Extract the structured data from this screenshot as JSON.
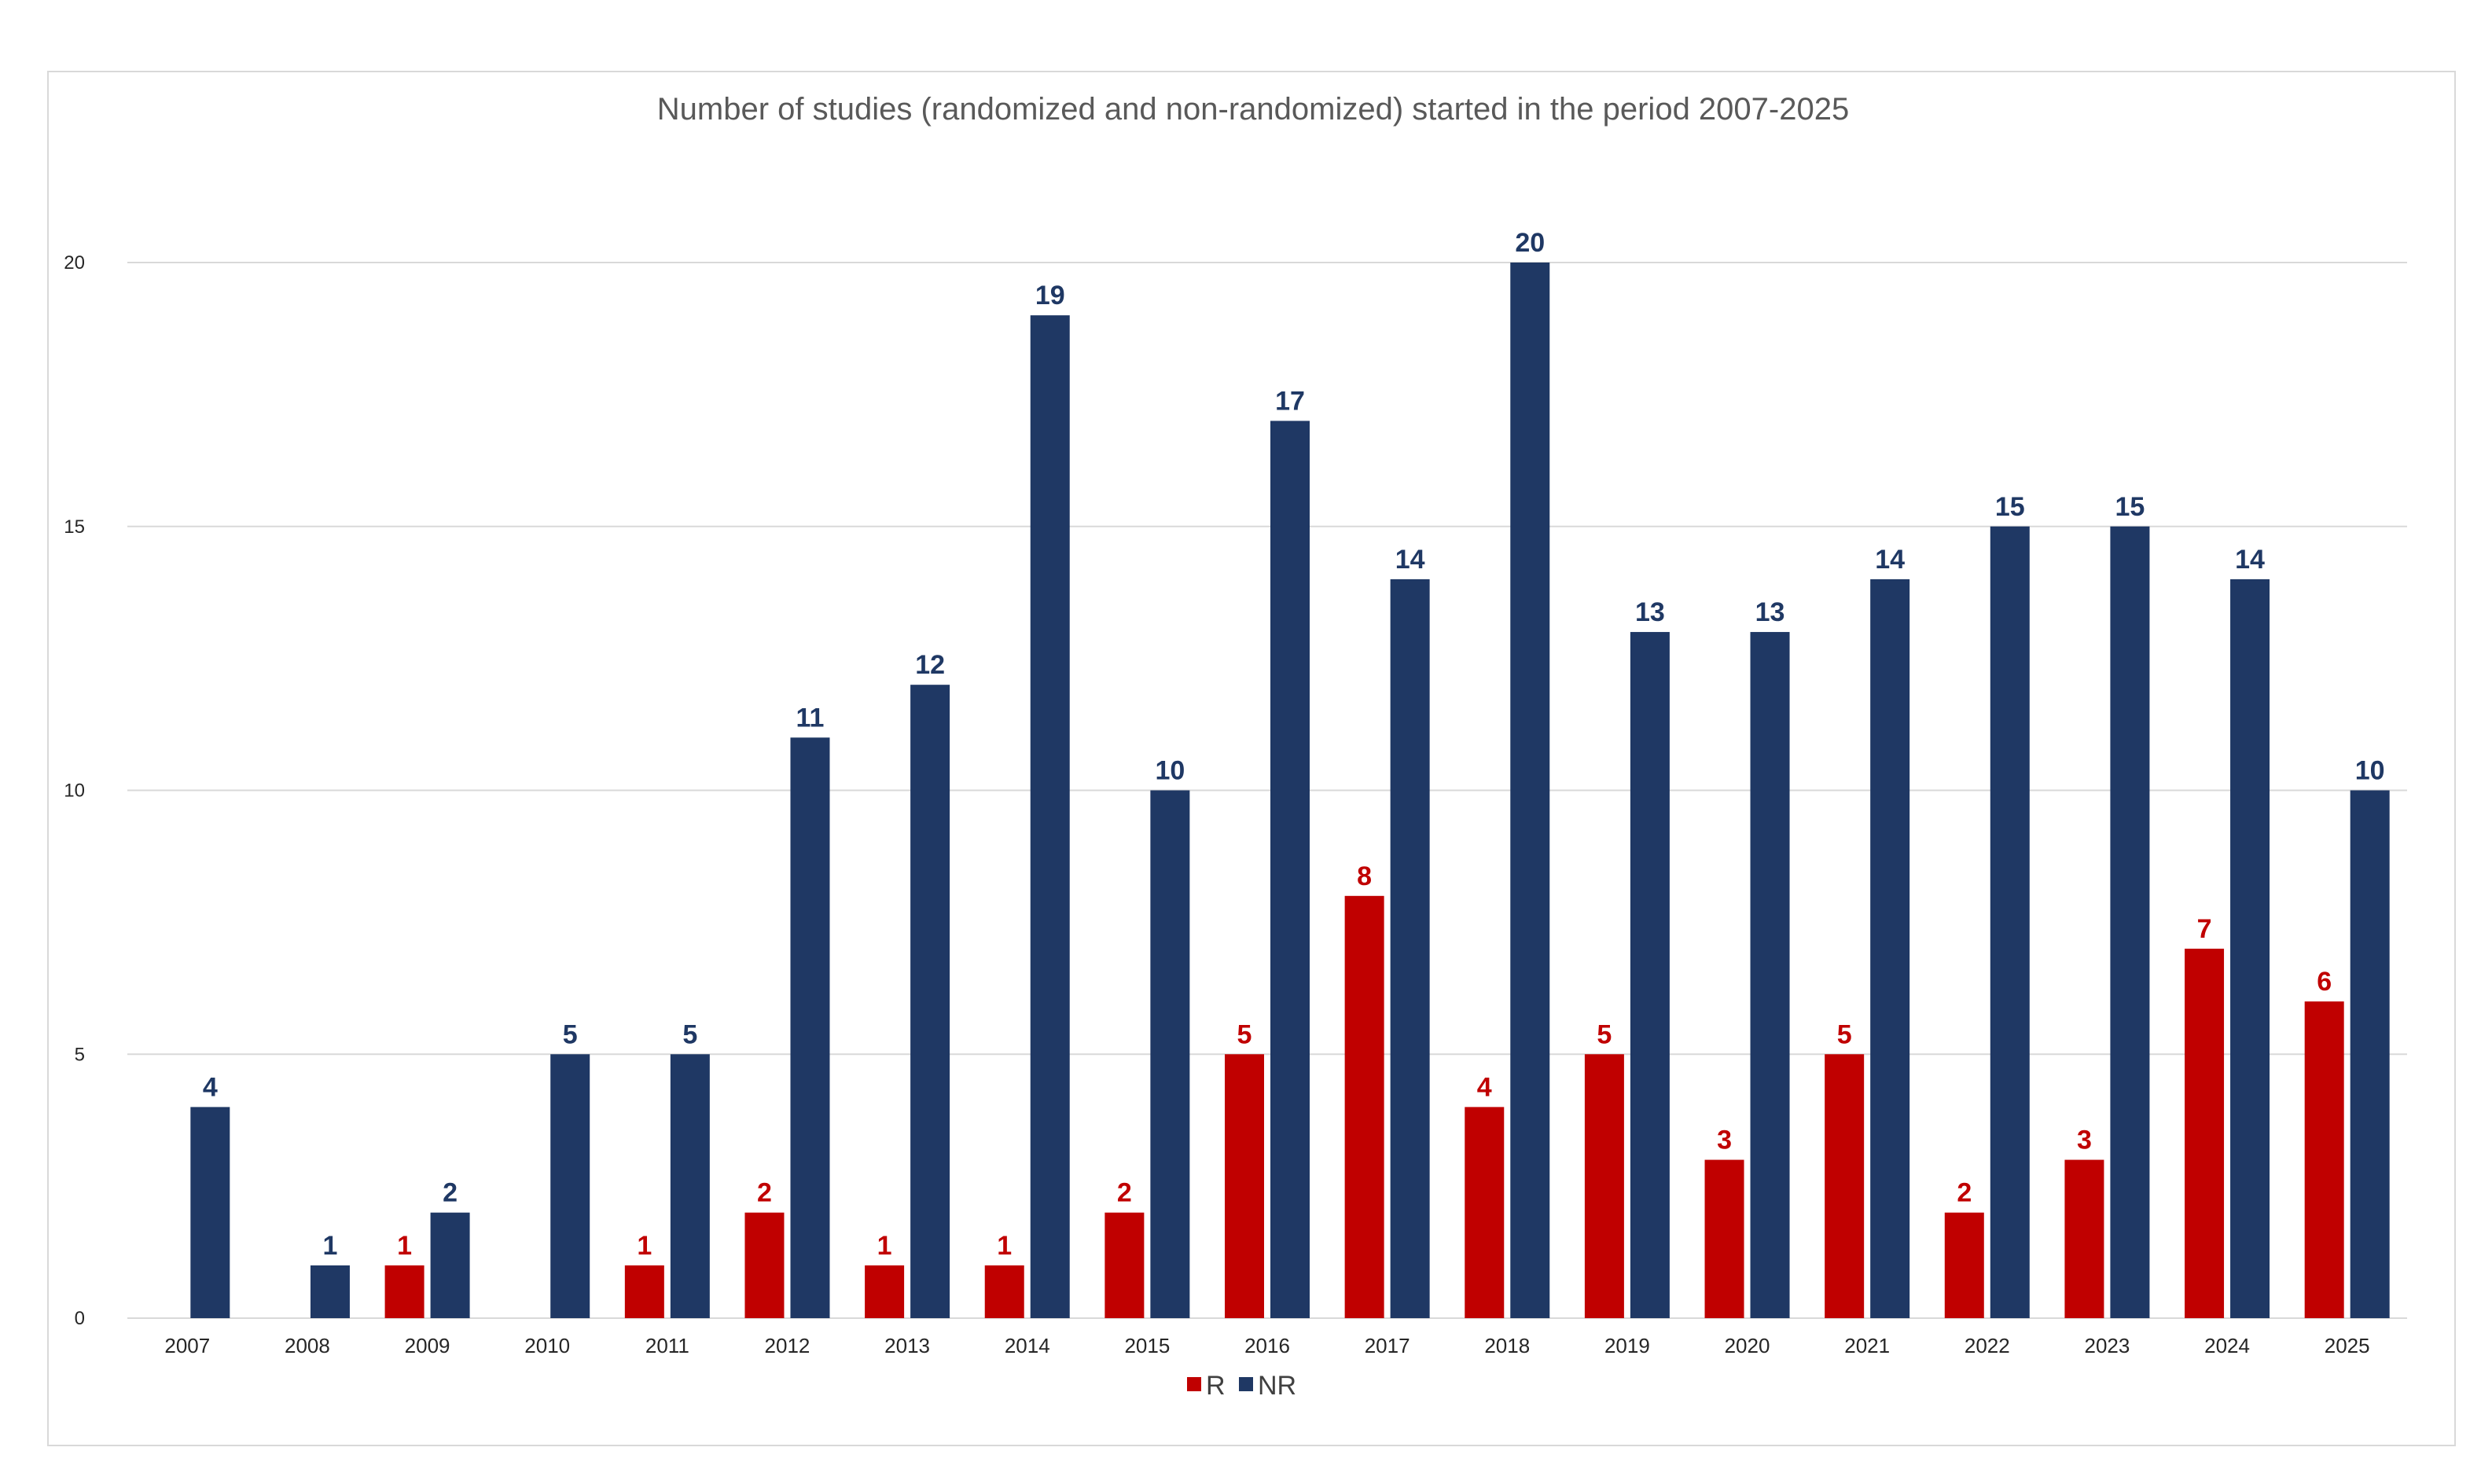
{
  "chart_data": {
    "type": "bar",
    "title": "Number of studies (randomized and non-randomized) started in the period 2007-2025",
    "xlabel": "",
    "ylabel": "",
    "ylim": [
      0,
      20
    ],
    "yticks": [
      "0",
      "5",
      "10",
      "15",
      "20"
    ],
    "grid": true,
    "legend_position": "bottom",
    "categories": [
      "2007",
      "2008",
      "2009",
      "2010",
      "2011",
      "2012",
      "2013",
      "2014",
      "2015",
      "2016",
      "2017",
      "2018",
      "2019",
      "2020",
      "2021",
      "2022",
      "2023",
      "2024",
      "2025"
    ],
    "series": [
      {
        "name": "R",
        "color": "#c00000",
        "values": [
          null,
          null,
          1,
          null,
          1,
          2,
          1,
          1,
          2,
          5,
          8,
          4,
          5,
          3,
          5,
          2,
          3,
          7,
          6
        ]
      },
      {
        "name": "NR",
        "color": "#1f3864",
        "values": [
          4,
          1,
          2,
          5,
          5,
          11,
          12,
          19,
          10,
          17,
          14,
          20,
          13,
          13,
          14,
          15,
          15,
          14,
          10
        ]
      }
    ]
  }
}
